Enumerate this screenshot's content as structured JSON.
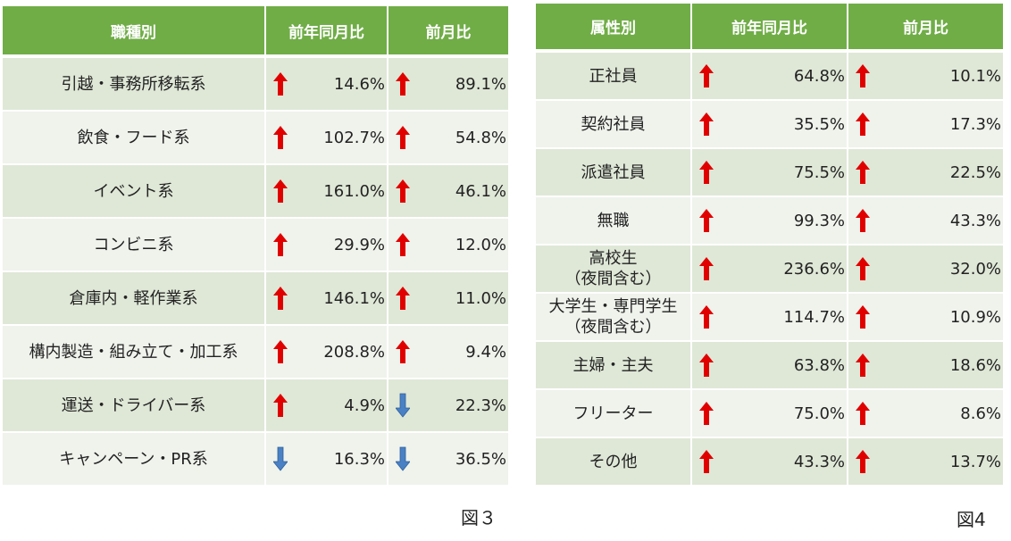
{
  "colors": {
    "header_bg": "#70ad47",
    "row_dark": "#dfe8d7",
    "row_light": "#eff3ec",
    "up": "#e00000",
    "down": "#4a80c4"
  },
  "table3": {
    "headers": {
      "category": "職種別",
      "yoy": "前年同月比",
      "mom": "前月比"
    },
    "rows": [
      {
        "label": "引越・事務所移転系",
        "yoy": {
          "dir": "up",
          "value": "14.6%"
        },
        "mom": {
          "dir": "up",
          "value": "89.1%"
        }
      },
      {
        "label": "飲食・フード系",
        "yoy": {
          "dir": "up",
          "value": "102.7%"
        },
        "mom": {
          "dir": "up",
          "value": "54.8%"
        }
      },
      {
        "label": "イベント系",
        "yoy": {
          "dir": "up",
          "value": "161.0%"
        },
        "mom": {
          "dir": "up",
          "value": "46.1%"
        }
      },
      {
        "label": "コンビニ系",
        "yoy": {
          "dir": "up",
          "value": "29.9%"
        },
        "mom": {
          "dir": "up",
          "value": "12.0%"
        }
      },
      {
        "label": "倉庫内・軽作業系",
        "yoy": {
          "dir": "up",
          "value": "146.1%"
        },
        "mom": {
          "dir": "up",
          "value": "11.0%"
        }
      },
      {
        "label": "構内製造・組み立て・加工系",
        "yoy": {
          "dir": "up",
          "value": "208.8%"
        },
        "mom": {
          "dir": "up",
          "value": "9.4%"
        }
      },
      {
        "label": "運送・ドライバー系",
        "yoy": {
          "dir": "up",
          "value": "4.9%"
        },
        "mom": {
          "dir": "down",
          "value": "22.3%"
        }
      },
      {
        "label": "キャンペーン・PR系",
        "yoy": {
          "dir": "down",
          "value": "16.3%"
        },
        "mom": {
          "dir": "down",
          "value": "36.5%"
        }
      }
    ],
    "caption": "図３"
  },
  "table4": {
    "headers": {
      "category": "属性別",
      "yoy": "前年同月比",
      "mom": "前月比"
    },
    "rows": [
      {
        "label": "正社員",
        "yoy": {
          "dir": "up",
          "value": "64.8%"
        },
        "mom": {
          "dir": "up",
          "value": "10.1%"
        }
      },
      {
        "label": "契約社員",
        "yoy": {
          "dir": "up",
          "value": "35.5%"
        },
        "mom": {
          "dir": "up",
          "value": "17.3%"
        }
      },
      {
        "label": "派遣社員",
        "yoy": {
          "dir": "up",
          "value": "75.5%"
        },
        "mom": {
          "dir": "up",
          "value": "22.5%"
        }
      },
      {
        "label": "無職",
        "yoy": {
          "dir": "up",
          "value": "99.3%"
        },
        "mom": {
          "dir": "up",
          "value": "43.3%"
        }
      },
      {
        "label": "高校生\n（夜間含む）",
        "yoy": {
          "dir": "up",
          "value": "236.6%"
        },
        "mom": {
          "dir": "up",
          "value": "32.0%"
        }
      },
      {
        "label": "大学生・専門学生\n（夜間含む）",
        "yoy": {
          "dir": "up",
          "value": "114.7%"
        },
        "mom": {
          "dir": "up",
          "value": "10.9%"
        }
      },
      {
        "label": "主婦・主夫",
        "yoy": {
          "dir": "up",
          "value": "63.8%"
        },
        "mom": {
          "dir": "up",
          "value": "18.6%"
        }
      },
      {
        "label": "フリーター",
        "yoy": {
          "dir": "up",
          "value": "75.0%"
        },
        "mom": {
          "dir": "up",
          "value": "8.6%"
        }
      },
      {
        "label": "その他",
        "yoy": {
          "dir": "up",
          "value": "43.3%"
        },
        "mom": {
          "dir": "up",
          "value": "13.7%"
        }
      }
    ],
    "caption": "図4"
  }
}
